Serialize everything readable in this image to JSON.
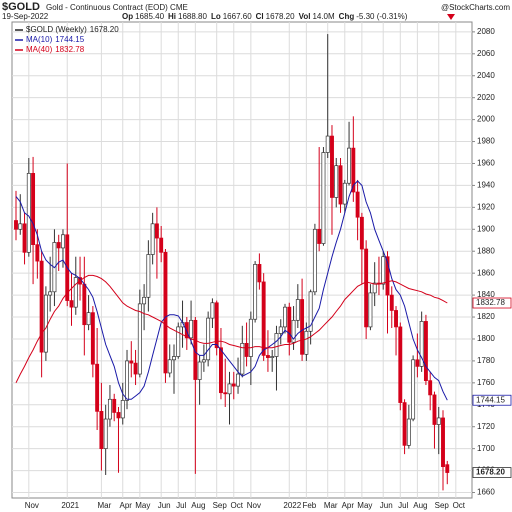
{
  "chart_data": {
    "type": "candlestick",
    "title": "$GOLD",
    "subtitle": "Gold - Continuous Contract (EOD) CME",
    "credit": "@StockCharts.com",
    "date": "19-Sep-2022",
    "quote": [
      {
        "label": "Op",
        "value": "1685.40"
      },
      {
        "label": "Hi",
        "value": "1688.80"
      },
      {
        "label": "Lo",
        "value": "1667.60"
      },
      {
        "label": "Cl",
        "value": "1678.20"
      },
      {
        "label": "Vol",
        "value": "14.0M"
      },
      {
        "label": "Chg",
        "value": "-5.30 (-0.31%)"
      }
    ],
    "price_name": "$GOLD (Weekly)",
    "price_label": "1678.20",
    "up_color": "#ffffff",
    "down_color": "#d4001a",
    "grid": true,
    "categories": [
      null,
      null,
      null,
      "Nov",
      null,
      null,
      null,
      null,
      null,
      null,
      null,
      null,
      "2021",
      null,
      null,
      null,
      null,
      null,
      null,
      null,
      "Mar",
      null,
      null,
      null,
      null,
      "Apr",
      null,
      null,
      null,
      "May",
      null,
      null,
      null,
      null,
      "Jun",
      null,
      null,
      null,
      "Jul",
      null,
      null,
      null,
      "Aug",
      null,
      null,
      null,
      null,
      "Sep",
      null,
      null,
      null,
      "Oct",
      null,
      null,
      null,
      "Nov",
      null,
      null,
      null,
      null,
      null,
      null,
      null,
      null,
      "2022",
      null,
      null,
      null,
      "Feb",
      null,
      null,
      null,
      null,
      "Mar",
      null,
      null,
      null,
      "Apr",
      null,
      null,
      null,
      "May",
      null,
      null,
      null,
      null,
      "Jun",
      null,
      null,
      null,
      "Jul",
      null,
      null,
      null,
      "Aug",
      null,
      null,
      null,
      null,
      "Sep",
      null,
      null
    ],
    "extra_x_label": "Oct",
    "open": [
      1908,
      1900,
      1905,
      1879,
      1951,
      1886,
      1871,
      1788,
      1840,
      1843,
      1888,
      1883,
      1895,
      1835,
      1829,
      1856,
      1850,
      1813,
      1824,
      1777,
      1734,
      1700,
      1727,
      1745,
      1733,
      1728,
      1744,
      1780,
      1778,
      1768,
      1832,
      1838,
      1877,
      1905,
      1892,
      1879,
      1769,
      1781,
      1784,
      1811,
      1815,
      1801,
      1817,
      1763,
      1779,
      1781,
      1819,
      1833,
      1792,
      1751,
      1750,
      1759,
      1757,
      1768,
      1796,
      1784,
      1818,
      1868,
      1852,
      1785,
      1783,
      1784,
      1805,
      1811,
      1829,
      1797,
      1817,
      1836,
      1786,
      1807,
      1843,
      1900,
      1887,
      1970,
      1985,
      1929,
      1958,
      1923,
      1942,
      1974,
      1934,
      1911,
      1882,
      1811,
      1842,
      1851,
      1850,
      1875,
      1840,
      1826,
      1811,
      1742,
      1703,
      1727,
      1781,
      1775,
      1816,
      1762,
      1749,
      1722,
      1728,
      1685.4
    ],
    "high": [
      1935,
      1932,
      1915,
      1965,
      1966,
      1900,
      1880,
      1848,
      1875,
      1900,
      1895,
      1900,
      1960,
      1860,
      1875,
      1875,
      1875,
      1840,
      1830,
      1810,
      1760,
      1740,
      1758,
      1750,
      1738,
      1760,
      1790,
      1798,
      1790,
      1845,
      1850,
      1890,
      1915,
      1920,
      1903,
      1882,
      1795,
      1795,
      1815,
      1835,
      1820,
      1835,
      1820,
      1785,
      1795,
      1825,
      1837,
      1835,
      1810,
      1782,
      1770,
      1770,
      1783,
      1812,
      1815,
      1825,
      1871,
      1878,
      1860,
      1808,
      1790,
      1812,
      1818,
      1832,
      1833,
      1830,
      1850,
      1855,
      1815,
      1845,
      1905,
      1975,
      1975,
      2078,
      1995,
      1965,
      1965,
      1945,
      1998,
      2003,
      1945,
      1915,
      1890,
      1850,
      1870,
      1875,
      1880,
      1880,
      1848,
      1830,
      1815,
      1745,
      1740,
      1785,
      1805,
      1825,
      1822,
      1770,
      1752,
      1738,
      1735,
      1688.8
    ],
    "low": [
      1890,
      1895,
      1868,
      1875,
      1850,
      1855,
      1765,
      1780,
      1825,
      1830,
      1862,
      1865,
      1830,
      1812,
      1822,
      1835,
      1785,
      1808,
      1765,
      1717,
      1680,
      1676,
      1720,
      1725,
      1678,
      1722,
      1736,
      1765,
      1758,
      1765,
      1808,
      1825,
      1868,
      1855,
      1870,
      1760,
      1765,
      1750,
      1782,
      1792,
      1790,
      1795,
      1677,
      1740,
      1770,
      1775,
      1810,
      1785,
      1745,
      1738,
      1722,
      1745,
      1750,
      1765,
      1775,
      1758,
      1815,
      1845,
      1780,
      1770,
      1770,
      1753,
      1795,
      1805,
      1785,
      1790,
      1810,
      1780,
      1780,
      1795,
      1840,
      1880,
      1885,
      1965,
      1895,
      1920,
      1915,
      1915,
      1940,
      1925,
      1890,
      1850,
      1800,
      1808,
      1830,
      1840,
      1845,
      1805,
      1810,
      1785,
      1735,
      1695,
      1700,
      1725,
      1765,
      1770,
      1758,
      1735,
      1700,
      1695,
      1662,
      1667.6
    ],
    "close": [
      1900,
      1905,
      1879,
      1951,
      1886,
      1871,
      1788,
      1840,
      1843,
      1888,
      1883,
      1895,
      1835,
      1829,
      1856,
      1850,
      1813,
      1824,
      1777,
      1734,
      1700,
      1727,
      1745,
      1733,
      1728,
      1744,
      1780,
      1778,
      1768,
      1832,
      1838,
      1877,
      1905,
      1892,
      1879,
      1769,
      1781,
      1784,
      1811,
      1815,
      1801,
      1817,
      1763,
      1779,
      1781,
      1819,
      1833,
      1792,
      1751,
      1750,
      1759,
      1757,
      1768,
      1796,
      1784,
      1818,
      1868,
      1852,
      1785,
      1783,
      1784,
      1805,
      1811,
      1829,
      1797,
      1817,
      1836,
      1786,
      1807,
      1843,
      1900,
      1887,
      1970,
      1985,
      1929,
      1958,
      1923,
      1942,
      1974,
      1934,
      1911,
      1882,
      1811,
      1842,
      1851,
      1850,
      1875,
      1840,
      1826,
      1811,
      1742,
      1703,
      1727,
      1781,
      1775,
      1816,
      1762,
      1749,
      1722,
      1728,
      1683.6,
      1678.2
    ],
    "series": [
      {
        "name": "MA(10)",
        "color": "#1a1aa8",
        "last_label": "1744.15",
        "values": [
          1930,
          1925,
          1915,
          1912,
          1905,
          1895,
          1880,
          1872,
          1868,
          1865,
          1870,
          1872,
          1865,
          1860,
          1858,
          1855,
          1850,
          1845,
          1838,
          1825,
          1810,
          1795,
          1785,
          1775,
          1760,
          1750,
          1745,
          1745,
          1748,
          1751,
          1757,
          1770,
          1785,
          1800,
          1815,
          1820,
          1822,
          1822,
          1821,
          1815,
          1807,
          1798,
          1788,
          1785,
          1785,
          1790,
          1795,
          1795,
          1790,
          1785,
          1780,
          1775,
          1770,
          1766,
          1768,
          1770,
          1775,
          1785,
          1790,
          1792,
          1795,
          1798,
          1802,
          1808,
          1805,
          1800,
          1805,
          1808,
          1810,
          1812,
          1820,
          1828,
          1845,
          1860,
          1875,
          1888,
          1900,
          1915,
          1930,
          1940,
          1944,
          1940,
          1925,
          1915,
          1900,
          1890,
          1880,
          1870,
          1855,
          1845,
          1840,
          1830,
          1815,
          1800,
          1790,
          1783,
          1775,
          1770,
          1765,
          1762,
          1752,
          1744.15
        ]
      },
      {
        "name": "MA(40)",
        "color": "#d4001a",
        "last_label": "1832.78",
        "values": [
          1760,
          1768,
          1775,
          1783,
          1790,
          1798,
          1805,
          1810,
          1818,
          1825,
          1830,
          1837,
          1842,
          1846,
          1850,
          1853,
          1856,
          1858,
          1858,
          1857,
          1855,
          1852,
          1848,
          1843,
          1838,
          1833,
          1830,
          1828,
          1826,
          1825,
          1823,
          1822,
          1820,
          1818,
          1816,
          1813,
          1810,
          1808,
          1806,
          1804,
          1802,
          1800,
          1799,
          1797,
          1796,
          1796,
          1797,
          1798,
          1798,
          1797,
          1795,
          1794,
          1793,
          1792,
          1792,
          1792,
          1793,
          1793,
          1792,
          1792,
          1792,
          1793,
          1794,
          1795,
          1795,
          1796,
          1798,
          1799,
          1800,
          1802,
          1805,
          1808,
          1812,
          1816,
          1820,
          1825,
          1830,
          1836,
          1840,
          1844,
          1848,
          1850,
          1852,
          1851,
          1850,
          1850,
          1851,
          1852,
          1853,
          1852,
          1850,
          1848,
          1846,
          1845,
          1844,
          1843,
          1841,
          1840,
          1838,
          1837,
          1835,
          1832.78
        ]
      }
    ],
    "ylim": [
      1655,
      2089
    ],
    "yticks": [
      1660,
      1680,
      1700,
      1720,
      1740,
      1760,
      1780,
      1800,
      1820,
      1840,
      1860,
      1880,
      1900,
      1920,
      1940,
      1960,
      1980,
      2000,
      2020,
      2040,
      2060,
      2080
    ]
  }
}
